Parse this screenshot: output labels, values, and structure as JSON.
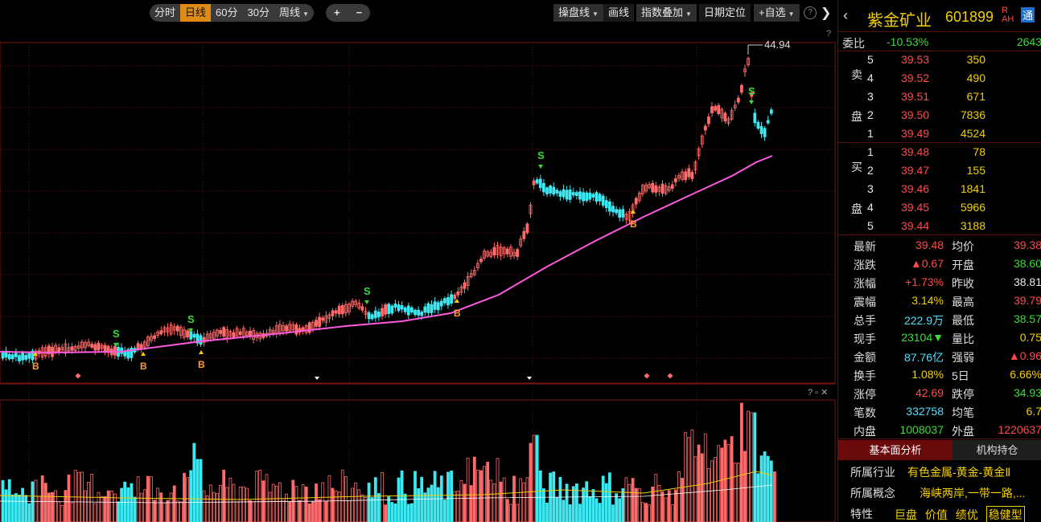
{
  "toolbar": {
    "period_tabs": [
      "分时",
      "日线",
      "60分",
      "30分",
      "周线"
    ],
    "active_period": "日线",
    "zoom_in": "+",
    "zoom_out": "−",
    "trade_line": "操盘线",
    "draw": "画线",
    "index_overlay": "指数叠加",
    "date_locate": "日期定位",
    "add_watch": "+自选"
  },
  "chart": {
    "max_price_label": "44.94",
    "signal_buy": "B",
    "signal_sell": "S",
    "colors": {
      "up": "#ff6a6a",
      "down": "#3ee8f0",
      "ma": "#ff5ae0",
      "vol_ma": "#f4d000",
      "grid": "#5a1010"
    }
  },
  "chart_data": {
    "type": "candlestick",
    "price_high": 44.94,
    "ma_line_color": "magenta",
    "signals": [
      "B",
      "S",
      "B",
      "S",
      "B",
      "S",
      "B",
      "S",
      "B",
      "S"
    ]
  },
  "stock": {
    "name": "紫金矿业",
    "code": "601899",
    "badge_r": "R",
    "badge_ah": "AH",
    "badge_tong": "通"
  },
  "weibi": {
    "label": "委比",
    "value": "-10.53%",
    "diff": "2643"
  },
  "sell_label": [
    "卖",
    "盘"
  ],
  "buy_label": [
    "买",
    "盘"
  ],
  "sell_orders": [
    {
      "level": "5",
      "price": "39.53",
      "vol": "350"
    },
    {
      "level": "4",
      "price": "39.52",
      "vol": "490"
    },
    {
      "level": "3",
      "price": "39.51",
      "vol": "671"
    },
    {
      "level": "2",
      "price": "39.50",
      "vol": "7836"
    },
    {
      "level": "1",
      "price": "39.49",
      "vol": "4524"
    }
  ],
  "buy_orders": [
    {
      "level": "1",
      "price": "39.48",
      "vol": "78"
    },
    {
      "level": "2",
      "price": "39.47",
      "vol": "155"
    },
    {
      "level": "3",
      "price": "39.46",
      "vol": "1841"
    },
    {
      "level": "4",
      "price": "39.45",
      "vol": "5966"
    },
    {
      "level": "5",
      "price": "39.44",
      "vol": "3188"
    }
  ],
  "quote": [
    {
      "l1": "最新",
      "v1": "39.48",
      "c1": "red",
      "l2": "均价",
      "v2": "39.38",
      "c2": "red"
    },
    {
      "l1": "涨跌",
      "v1": "▲0.67",
      "c1": "red",
      "l2": "开盘",
      "v2": "38.60",
      "c2": "green"
    },
    {
      "l1": "涨幅",
      "v1": "+1.73%",
      "c1": "red",
      "l2": "昨收",
      "v2": "38.81",
      "c2": "white"
    },
    {
      "l1": "震幅",
      "v1": "3.14%",
      "c1": "yellow",
      "l2": "最高",
      "v2": "39.79",
      "c2": "red"
    },
    {
      "l1": "总手",
      "v1": "222.9万",
      "c1": "cyan",
      "l2": "最低",
      "v2": "38.57",
      "c2": "green"
    },
    {
      "l1": "现手",
      "v1": "23104▼",
      "c1": "green",
      "l2": "量比",
      "v2": "0.75",
      "c2": "yellow"
    },
    {
      "l1": "金额",
      "v1": "87.76亿",
      "c1": "cyan",
      "l2": "强弱",
      "v2": "▲0.96",
      "c2": "red"
    },
    {
      "l1": "换手",
      "v1": "1.08%",
      "c1": "yellow",
      "l2": "5日",
      "v2": "6.66%",
      "c2": "yellow"
    },
    {
      "l1": "涨停",
      "v1": "42.69",
      "c1": "red",
      "l2": "跌停",
      "v2": "34.93",
      "c2": "green"
    },
    {
      "l1": "笔数",
      "v1": "332758",
      "c1": "cyan",
      "l2": "均笔",
      "v2": "6.7",
      "c2": "yellow"
    },
    {
      "l1": "内盘",
      "v1": "1008037",
      "c1": "green",
      "l2": "外盘",
      "v2": "1220637",
      "c2": "red"
    }
  ],
  "tabs": {
    "fundamental": "基本面分析",
    "institution": "机构持仓"
  },
  "fundamental": {
    "industry_label": "所属行业",
    "industry_value": "有色金属-黄金-黄金Ⅱ",
    "concept_label": "所属概念",
    "concept_value": "海峡两岸,一带一路,...",
    "feature_label": "特性",
    "features": [
      "巨盘",
      "价值",
      "绩优",
      "稳健型"
    ]
  }
}
